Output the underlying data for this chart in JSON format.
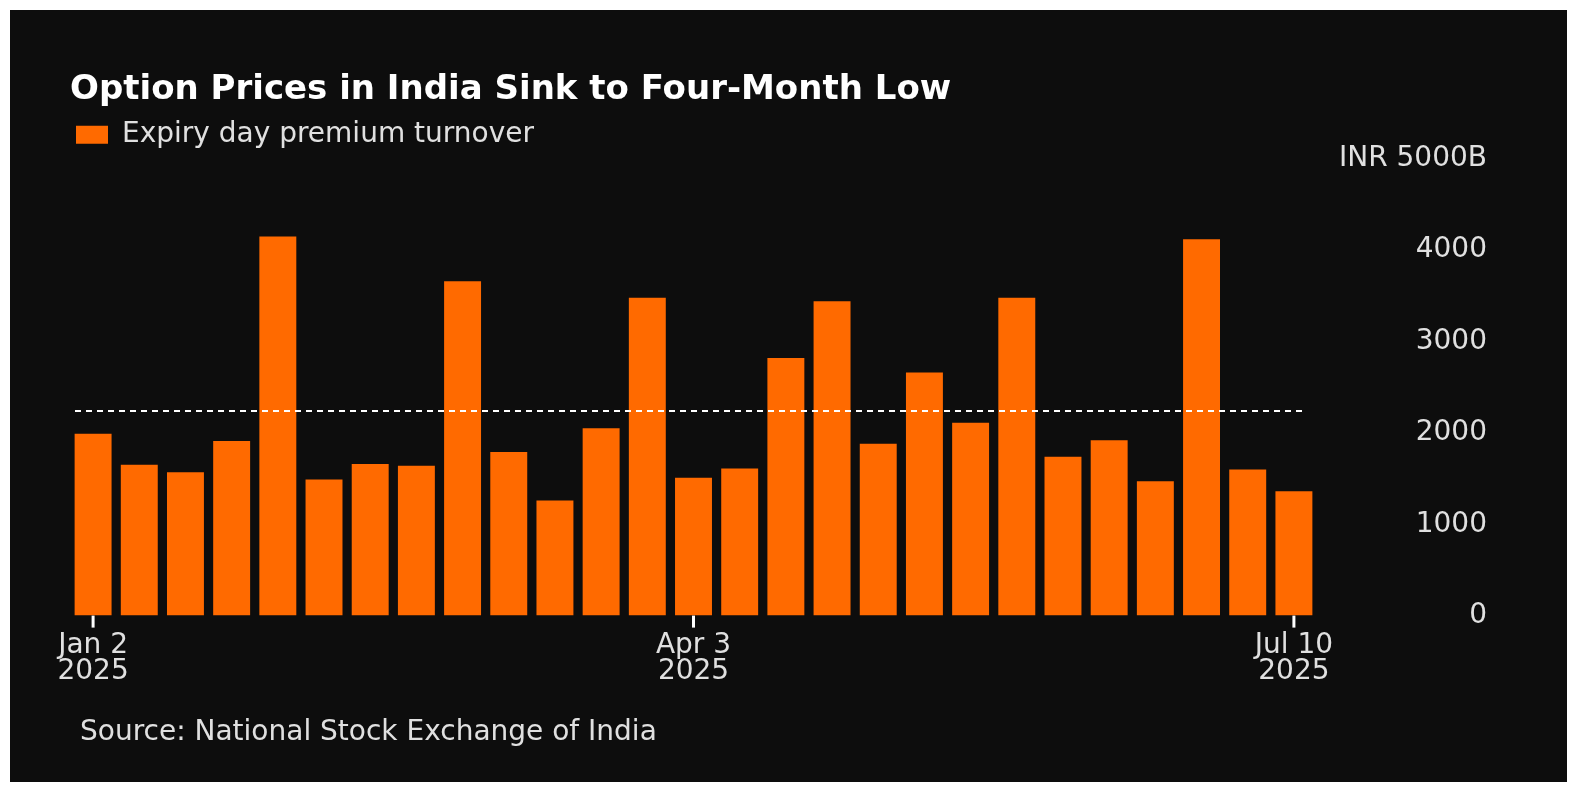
{
  "chart_data": {
    "type": "bar",
    "title": "Option Prices in India Sink to Four-Month Low",
    "categories": [
      "Jan 2 2025",
      null,
      null,
      null,
      null,
      null,
      null,
      null,
      null,
      null,
      null,
      null,
      null,
      "Apr 3 2025",
      null,
      null,
      null,
      null,
      null,
      null,
      null,
      null,
      null,
      null,
      null,
      null,
      "Jul 10 2025"
    ],
    "series": [
      {
        "name": "Expiry day premium turnover",
        "color": "#ff6a00",
        "values": [
          1990,
          1650,
          1570,
          1910,
          4150,
          1490,
          1660,
          1640,
          3660,
          1790,
          1260,
          2050,
          3480,
          1510,
          1610,
          2820,
          3440,
          1880,
          2660,
          2110,
          3480,
          1740,
          1920,
          1470,
          4120,
          1600,
          1360
        ]
      }
    ],
    "ylim": [
      0,
      5000
    ],
    "yticks": [
      0,
      1000,
      2000,
      3000,
      4000,
      {
        "value": 5000,
        "label": "INR 5000B"
      }
    ],
    "ref_lines": [
      {
        "axis": "y",
        "value": 2240,
        "color": "#ffffff",
        "line_style": "dashed"
      }
    ],
    "annotations": [
      "Source: National Stock Exchange of India"
    ],
    "legend": "top left",
    "grid": false
  }
}
